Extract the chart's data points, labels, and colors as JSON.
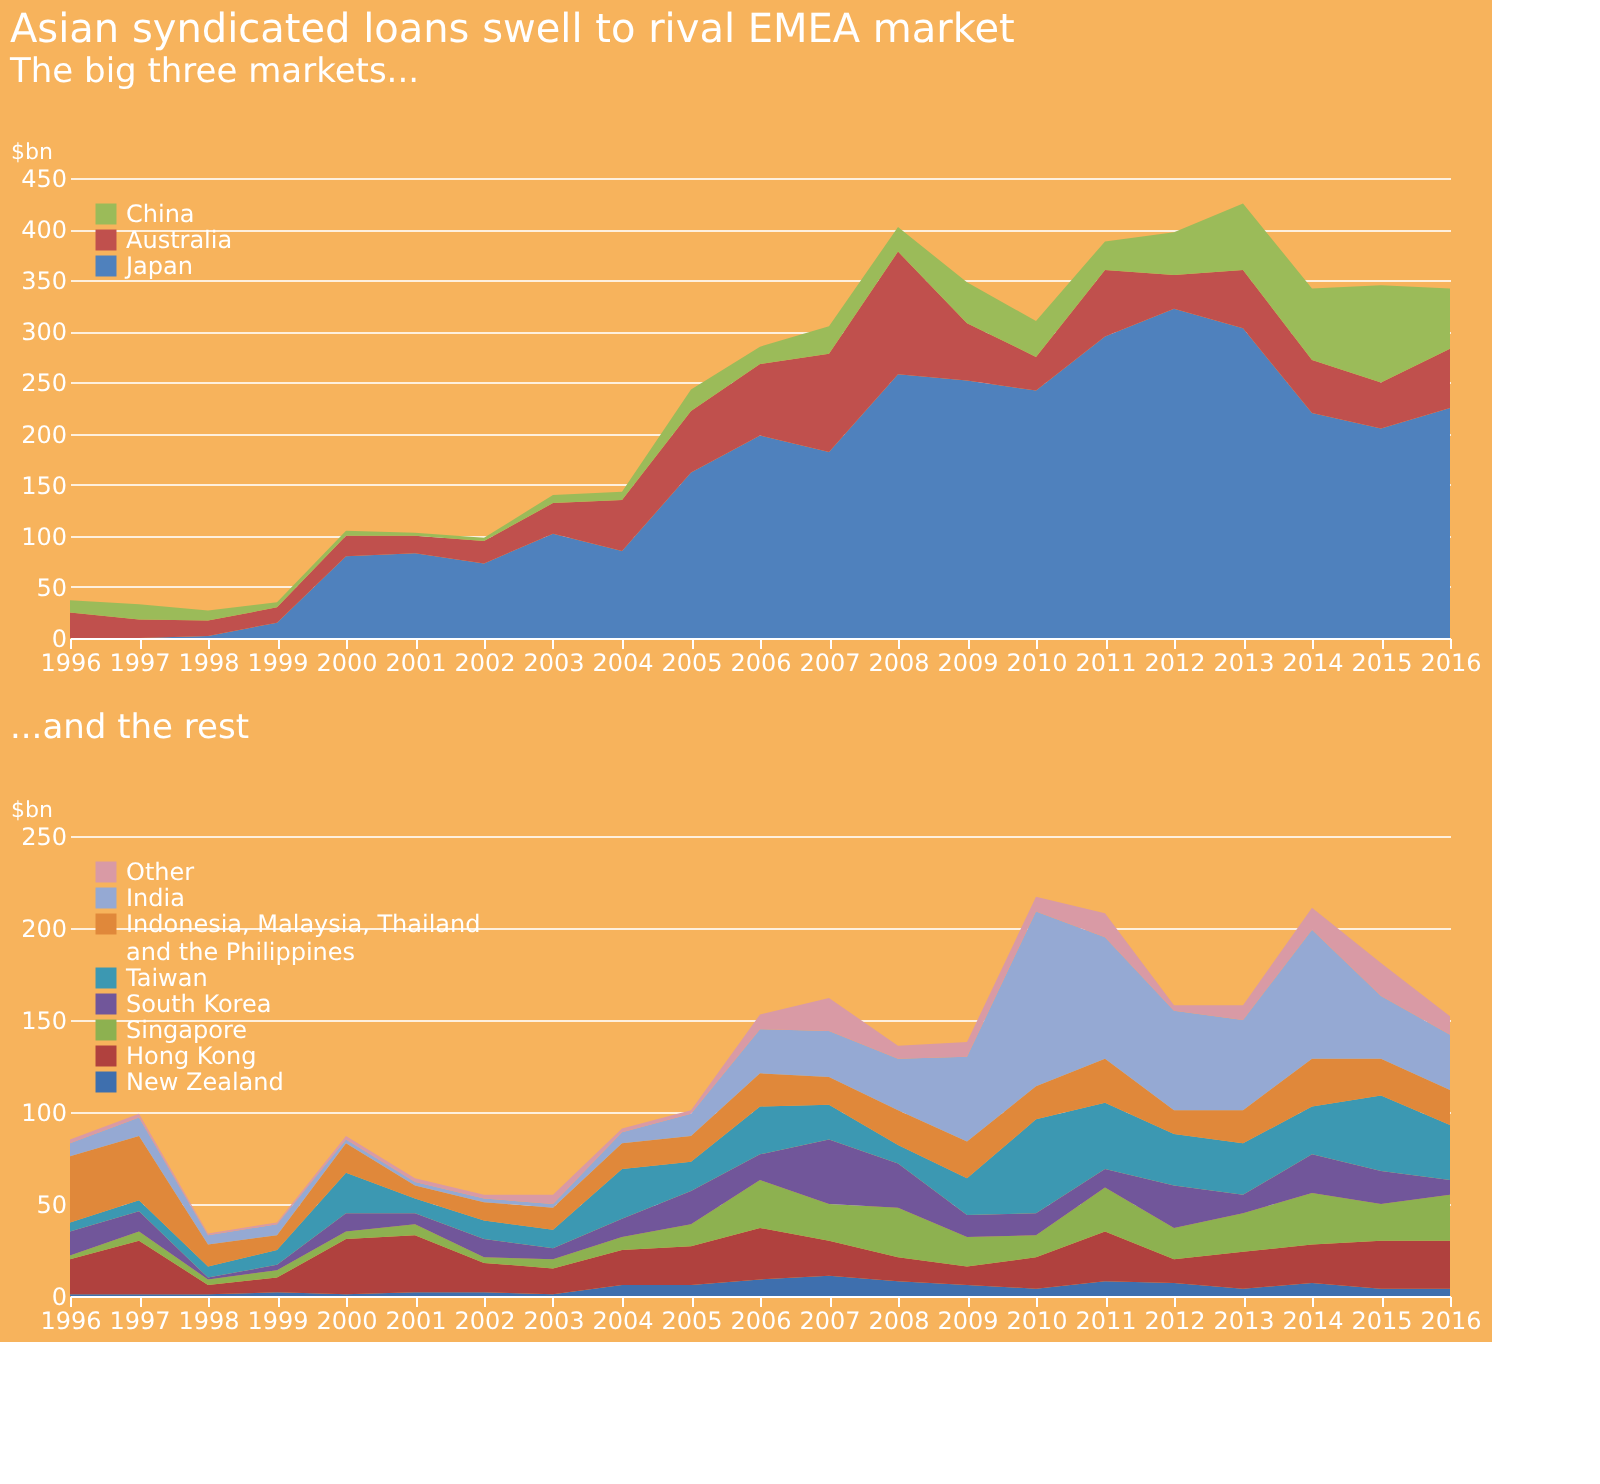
{
  "chart_data": [
    {
      "type": "area",
      "title": "Asian syndicated loans swell to rival EMEA market",
      "subtitle": "The big three markets...",
      "ylabel": "$bn",
      "stacked": true,
      "grid": "y",
      "legend": "top left",
      "x": [
        1996,
        1997,
        1998,
        1999,
        2000,
        2001,
        2002,
        2003,
        2004,
        2005,
        2006,
        2007,
        2008,
        2009,
        2010,
        2011,
        2012,
        2013,
        2014,
        2015,
        2016
      ],
      "xlim": [
        1996,
        2016
      ],
      "xticks": [
        1996,
        1997,
        1998,
        1999,
        2000,
        2001,
        2002,
        2003,
        2004,
        2005,
        2006,
        2007,
        2008,
        2009,
        2010,
        2011,
        2012,
        2013,
        2014,
        2015,
        2016
      ],
      "ylim": [
        0,
        450
      ],
      "yticks": [
        0,
        50,
        100,
        150,
        200,
        250,
        300,
        350,
        400,
        450
      ],
      "series": [
        {
          "name": "Japan",
          "color": "#4f81bd",
          "values": [
            0,
            0,
            2,
            15,
            80,
            83,
            73,
            102,
            85,
            162,
            198,
            182,
            258,
            252,
            242,
            295,
            322,
            303,
            220,
            205,
            225
          ]
        },
        {
          "name": "Australia",
          "color": "#c0504d",
          "values": [
            25,
            18,
            15,
            15,
            20,
            17,
            22,
            30,
            50,
            60,
            70,
            96,
            120,
            56,
            33,
            65,
            33,
            57,
            52,
            45,
            58
          ]
        },
        {
          "name": "China",
          "color": "#9bbb59",
          "values": [
            12,
            15,
            10,
            5,
            5,
            3,
            3,
            8,
            8,
            21,
            17,
            27,
            24,
            40,
            35,
            28,
            42,
            65,
            70,
            95,
            59
          ]
        }
      ]
    },
    {
      "type": "area",
      "title": "...and the rest",
      "ylabel": "$bn",
      "stacked": true,
      "grid": "y",
      "legend": "top left",
      "x": [
        1996,
        1997,
        1998,
        1999,
        2000,
        2001,
        2002,
        2003,
        2004,
        2005,
        2006,
        2007,
        2008,
        2009,
        2010,
        2011,
        2012,
        2013,
        2014,
        2015,
        2016
      ],
      "xlim": [
        1996,
        2016
      ],
      "xticks": [
        1996,
        1997,
        1998,
        1999,
        2000,
        2001,
        2002,
        2003,
        2004,
        2005,
        2006,
        2007,
        2008,
        2009,
        2010,
        2011,
        2012,
        2013,
        2014,
        2015,
        2016
      ],
      "ylim": [
        0,
        250
      ],
      "yticks": [
        0,
        50,
        100,
        150,
        200,
        250
      ],
      "series": [
        {
          "name": "New Zealand",
          "color": "#3e6fae",
          "values": [
            1,
            1,
            1,
            2,
            1,
            2,
            2,
            1,
            6,
            6,
            9,
            11,
            8,
            6,
            4,
            8,
            7,
            4,
            7,
            4,
            4
          ]
        },
        {
          "name": "Hong Kong",
          "color": "#b0413e",
          "values": [
            19,
            29,
            5,
            8,
            30,
            31,
            16,
            14,
            19,
            21,
            28,
            19,
            13,
            10,
            17,
            27,
            13,
            20,
            21,
            26,
            26
          ]
        },
        {
          "name": "Singapore",
          "color": "#8db150",
          "values": [
            2,
            5,
            3,
            4,
            4,
            6,
            3,
            5,
            7,
            12,
            26,
            20,
            27,
            16,
            12,
            24,
            17,
            21,
            28,
            20,
            25
          ]
        },
        {
          "name": "South Korea",
          "color": "#71569a",
          "values": [
            13,
            11,
            1,
            3,
            10,
            6,
            10,
            6,
            10,
            18,
            14,
            35,
            24,
            12,
            12,
            10,
            23,
            10,
            21,
            18,
            8
          ]
        },
        {
          "name": "Taiwan",
          "color": "#3c98b2",
          "values": [
            5,
            6,
            6,
            8,
            22,
            8,
            10,
            10,
            27,
            16,
            26,
            19,
            10,
            20,
            51,
            36,
            28,
            28,
            26,
            41,
            30
          ]
        },
        {
          "name": "Indonesia, Malaysia, Thailand and the Philippines",
          "color": "#e0883a",
          "values": [
            36,
            35,
            12,
            8,
            16,
            7,
            10,
            12,
            14,
            14,
            18,
            15,
            19,
            20,
            18,
            24,
            13,
            18,
            26,
            20,
            19
          ]
        },
        {
          "name": "India",
          "color": "#95a9d3",
          "values": [
            7,
            10,
            5,
            6,
            2,
            2,
            2,
            2,
            6,
            12,
            24,
            25,
            28,
            46,
            95,
            66,
            54,
            49,
            70,
            34,
            30
          ]
        },
        {
          "name": "Other",
          "color": "#d99aa5",
          "values": [
            2,
            2,
            1,
            1,
            2,
            2,
            2,
            5,
            2,
            2,
            8,
            18,
            7,
            8,
            8,
            13,
            3,
            8,
            12,
            18,
            10
          ]
        }
      ]
    }
  ]
}
